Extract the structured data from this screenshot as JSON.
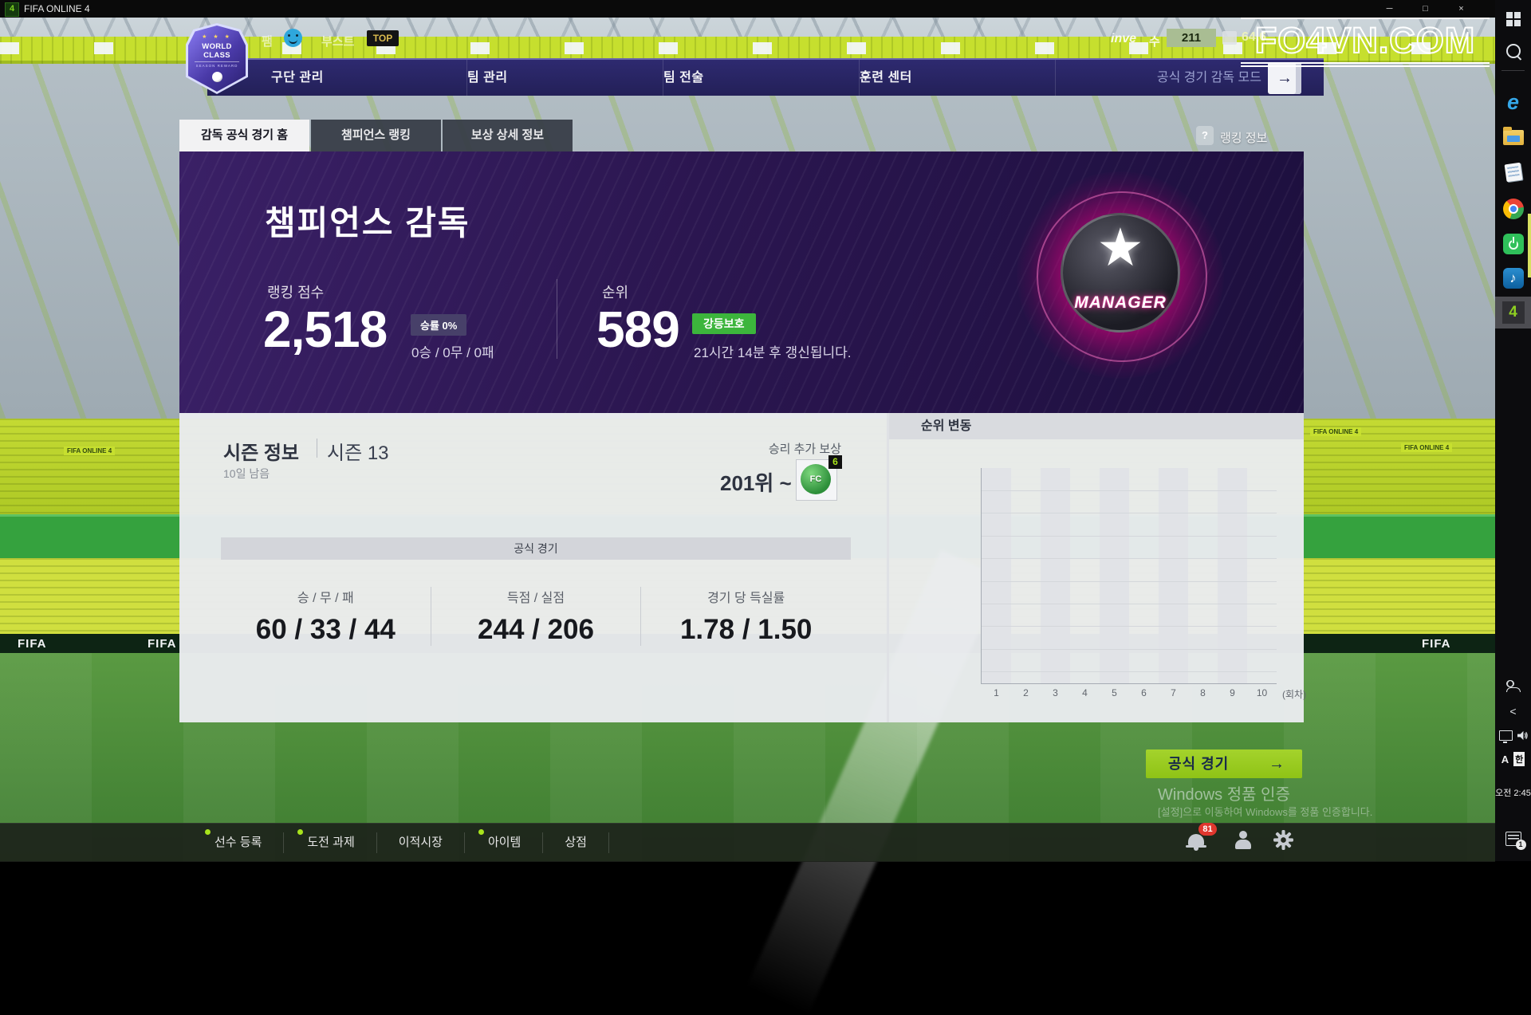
{
  "titlebar": {
    "app": "FIFA ONLINE 4",
    "icon": "4",
    "minimize": "─",
    "maximize": "□",
    "close": "×"
  },
  "watermark": "FO4VN.COM",
  "stream_overlay": {
    "text1": "팸",
    "text2": "부스트",
    "top_badge": "TOP"
  },
  "status_bar": {
    "fragment": "inve",
    "suffix": "수",
    "level": "211",
    "currency": "64,6"
  },
  "nav": {
    "logo": {
      "stars": "★ ★ ★",
      "line1": "WORLD CLASS",
      "line2": "SEASON REWARD"
    },
    "items": [
      "구단 관리",
      "팀 관리",
      "팀 전술",
      "훈련 센터"
    ],
    "mode": "공식 경기 감독 모드",
    "exit_arrow": "→"
  },
  "tabs": {
    "items": [
      "감독 공식 경기 홈",
      "챔피언스 랭킹",
      "보상 상세 정보"
    ],
    "active": 0,
    "help_q": "?",
    "help": "랭킹 정보"
  },
  "hero": {
    "title": "챔피언스 감독",
    "score_label": "랭킹 점수",
    "score": "2,518",
    "winrate_badge": "승률 0%",
    "record": "0승 / 0무 / 0패",
    "rank_label": "순위",
    "rank": "589",
    "protect_badge": "강등보호",
    "refresh": "21시간 14분 후 갱신됩니다.",
    "star": "★",
    "manager": "MANAGER"
  },
  "season": {
    "label": "시즌 정보",
    "value": "시즌 13",
    "remain": "10일 남음",
    "reward_label": "승리 추가 보상",
    "reward_rank": "201위 ~",
    "coin_text": "FC",
    "coin_badge": "6"
  },
  "official": {
    "header": "공식 경기",
    "stats": [
      {
        "label": "승 / 무 / 패",
        "value": "60 / 33 / 44"
      },
      {
        "label": "득점 / 실점",
        "value": "244 / 206"
      },
      {
        "label": "경기 당 득실률",
        "value": "1.78 / 1.50"
      }
    ]
  },
  "chart_data": {
    "type": "line",
    "title": "순위 변동",
    "x": [
      "1",
      "2",
      "3",
      "4",
      "5",
      "6",
      "7",
      "8",
      "9",
      "10"
    ],
    "x_unit": "(회차)",
    "series": [],
    "values": [],
    "note": "empty chart - no rank history plotted",
    "grid": true,
    "gridline_count": 9
  },
  "play_button": {
    "label": "공식 경기",
    "arrow": "→"
  },
  "win_activation": {
    "line1": "Windows 정품 인증",
    "line2": "[설정]으로 이동하여 Windows를 정품 인증합니다."
  },
  "bottom_nav": {
    "items": [
      {
        "label": "선수 등록",
        "dot": true
      },
      {
        "label": "도전 과제",
        "dot": true
      },
      {
        "label": "이적시장",
        "dot": false
      },
      {
        "label": "아이템",
        "dot": true
      },
      {
        "label": "상점",
        "dot": false
      }
    ],
    "alert_count": "81"
  },
  "stadium": {
    "ad": "FIFA",
    "banner": "FIFA ONLINE 4"
  },
  "taskbar": {
    "ie": "e",
    "music_note": "♪",
    "fifa_badge": "4",
    "chevron": "<",
    "ime_a": "A",
    "ime_ko": "한",
    "time_line1": "오전 2:45",
    "notif_count": "1"
  },
  "colors": {
    "accent_green": "#97c91f",
    "protect_green": "#3cb53c",
    "nav_navy": "#282465",
    "hero_purple": "#2c1752",
    "alert_red": "#e0372e",
    "stadium_lime": "#c6df2e",
    "magenta_glow": "#ff2fa0"
  }
}
